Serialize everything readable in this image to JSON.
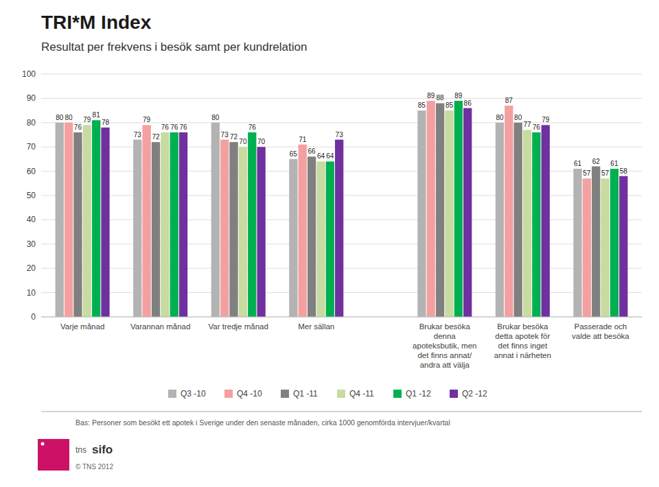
{
  "chart_data": {
    "type": "bar",
    "title": "TRI*M Index",
    "subtitle": "Resultat per frekvens i besök samt per kundrelation",
    "categories": [
      "Varje månad",
      "Varannan månad",
      "Var tredje månad",
      "Mer sällan",
      "Brukar besöka\ndenna\napoteksbutik, men\ndet finns annat/\nandra att välja",
      "Brukar besöka\ndetta apotek för\ndet finns inget\nannat i närheten",
      "Passerade och\nvalde att besöka"
    ],
    "series": [
      {
        "name": "Q3 -10",
        "color": "#b3b3b3",
        "values": [
          80,
          73,
          80,
          65,
          85,
          80,
          61
        ]
      },
      {
        "name": "Q4 -10",
        "color": "#f4a0a0",
        "values": [
          80,
          79,
          73,
          71,
          89,
          87,
          57
        ]
      },
      {
        "name": "Q1 -11",
        "color": "#808080",
        "values": [
          76,
          72,
          72,
          66,
          88,
          80,
          62
        ]
      },
      {
        "name": "Q4 -11",
        "color": "#c8dba0",
        "values": [
          79,
          76,
          70,
          64,
          85,
          77,
          57
        ]
      },
      {
        "name": "Q1 -12",
        "color": "#00b050",
        "values": [
          81,
          76,
          76,
          64,
          89,
          76,
          61
        ]
      },
      {
        "name": "Q2 -12",
        "color": "#7030a0",
        "values": [
          78,
          76,
          70,
          73,
          86,
          79,
          58
        ]
      }
    ],
    "ylim": [
      0,
      100
    ],
    "yticks": [
      0,
      10,
      20,
      30,
      40,
      50,
      60,
      70,
      80,
      90,
      100
    ],
    "grid": true,
    "data_labels": true,
    "legend": "bottom",
    "annotations": [
      "Bas: Personer som besökt ett apotek i Sverige under den senaste månaden, cirka 1000 genomförda intervjuer/kvartal",
      "tns",
      "sifo",
      "© TNS 2012"
    ]
  }
}
